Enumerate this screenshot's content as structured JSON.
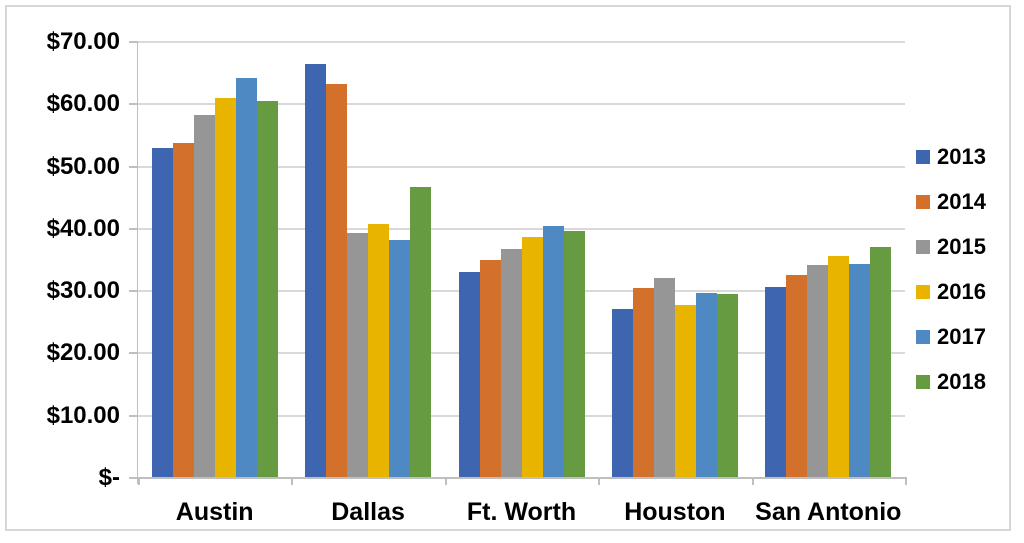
{
  "chart_data": {
    "type": "bar",
    "title": "",
    "categories": [
      "Austin",
      "Dallas",
      "Ft. Worth",
      "Houston",
      "San Antonio"
    ],
    "series": [
      {
        "name": "2013",
        "color": "#3e66b0",
        "values": [
          53.0,
          66.5,
          33.1,
          27.1,
          30.6
        ]
      },
      {
        "name": "2014",
        "color": "#d2702c",
        "values": [
          53.8,
          63.2,
          35.0,
          30.5,
          32.6
        ]
      },
      {
        "name": "2015",
        "color": "#969696",
        "values": [
          58.2,
          39.3,
          36.8,
          32.1,
          34.2
        ]
      },
      {
        "name": "2016",
        "color": "#e8b400",
        "values": [
          61.0,
          40.8,
          38.7,
          27.8,
          35.6
        ]
      },
      {
        "name": "2017",
        "color": "#4e89c4",
        "values": [
          64.3,
          38.2,
          40.4,
          29.7,
          34.3
        ]
      },
      {
        "name": "2018",
        "color": "#669b41",
        "values": [
          60.6,
          46.7,
          39.6,
          29.5,
          37.1
        ]
      }
    ],
    "y_axis": {
      "min": 0,
      "max": 70,
      "step": 10,
      "tick_labels": [
        "$-",
        "$10.00",
        "$20.00",
        "$30.00",
        "$40.00",
        "$50.00",
        "$60.00",
        "$70.00"
      ]
    },
    "x_axis": {
      "label": ""
    },
    "grid": true,
    "legend_position": "right",
    "colors": {
      "gridline": "#d9d9d9",
      "axis": "#bfbfbf",
      "frame_border": "#d6d6d6",
      "label_text": "#000000"
    }
  }
}
